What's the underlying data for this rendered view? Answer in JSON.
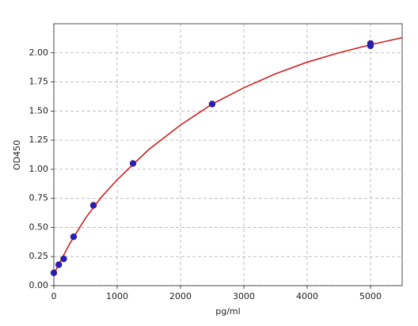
{
  "chart_data": {
    "type": "scatter",
    "x_label": "pg/ml",
    "y_label": "OD450",
    "xlim": [
      0,
      5500
    ],
    "ylim": [
      0,
      2.25
    ],
    "xticks": [
      0,
      1000,
      2000,
      3000,
      4000,
      5000
    ],
    "yticks": [
      {
        "value": 0,
        "label": "0.00"
      },
      {
        "value": 0.25,
        "label": "0.25"
      },
      {
        "value": 0.5,
        "label": "0.50"
      },
      {
        "value": 0.75,
        "label": "0.75"
      },
      {
        "value": 1,
        "label": "1.00"
      },
      {
        "value": 1.25,
        "label": "1.25"
      },
      {
        "value": 1.5,
        "label": "1.50"
      },
      {
        "value": 1.75,
        "label": "1.75"
      },
      {
        "value": 2,
        "label": "2.00"
      }
    ],
    "grid": true,
    "series": [
      {
        "type": "line",
        "color": "#cc2020",
        "x": [
          0,
          250,
          500,
          750,
          1000,
          1500,
          2000,
          2500,
          3000,
          3500,
          4000,
          4500,
          5000,
          5500
        ],
        "values": [
          0.1,
          0.36,
          0.58,
          0.76,
          0.91,
          1.17,
          1.38,
          1.56,
          1.7,
          1.82,
          1.92,
          2.0,
          2.07,
          2.13
        ]
      },
      {
        "type": "scatter",
        "color": "#2020c0",
        "x": [
          0,
          78,
          156,
          312,
          625,
          1250,
          2500,
          5000,
          5000
        ],
        "values": [
          0.11,
          0.18,
          0.23,
          0.42,
          0.69,
          1.05,
          1.56,
          2.08,
          2.06
        ]
      }
    ]
  }
}
